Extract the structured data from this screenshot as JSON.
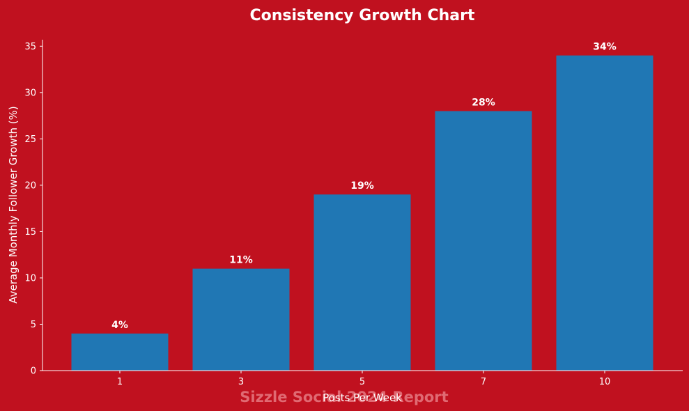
{
  "colors": {
    "background": "#c0111f",
    "bar": "#2077b4",
    "text": "#ffffff",
    "watermark": "#e06a73"
  },
  "watermark": "Sizzle Social 2024 Report",
  "chart_data": {
    "type": "bar",
    "title": "Consistency Growth Chart",
    "xlabel": "Posts Per Week",
    "ylabel": "Average Monthly Follower Growth (%)",
    "categories": [
      "1",
      "3",
      "5",
      "7",
      "10"
    ],
    "values": [
      4,
      11,
      19,
      28,
      34
    ],
    "data_labels": [
      "4%",
      "11%",
      "19%",
      "28%",
      "34%"
    ],
    "ylim": [
      0,
      35.7
    ],
    "yticks": [
      0,
      5,
      10,
      15,
      20,
      25,
      30,
      35
    ],
    "grid": false,
    "legend": "none"
  }
}
